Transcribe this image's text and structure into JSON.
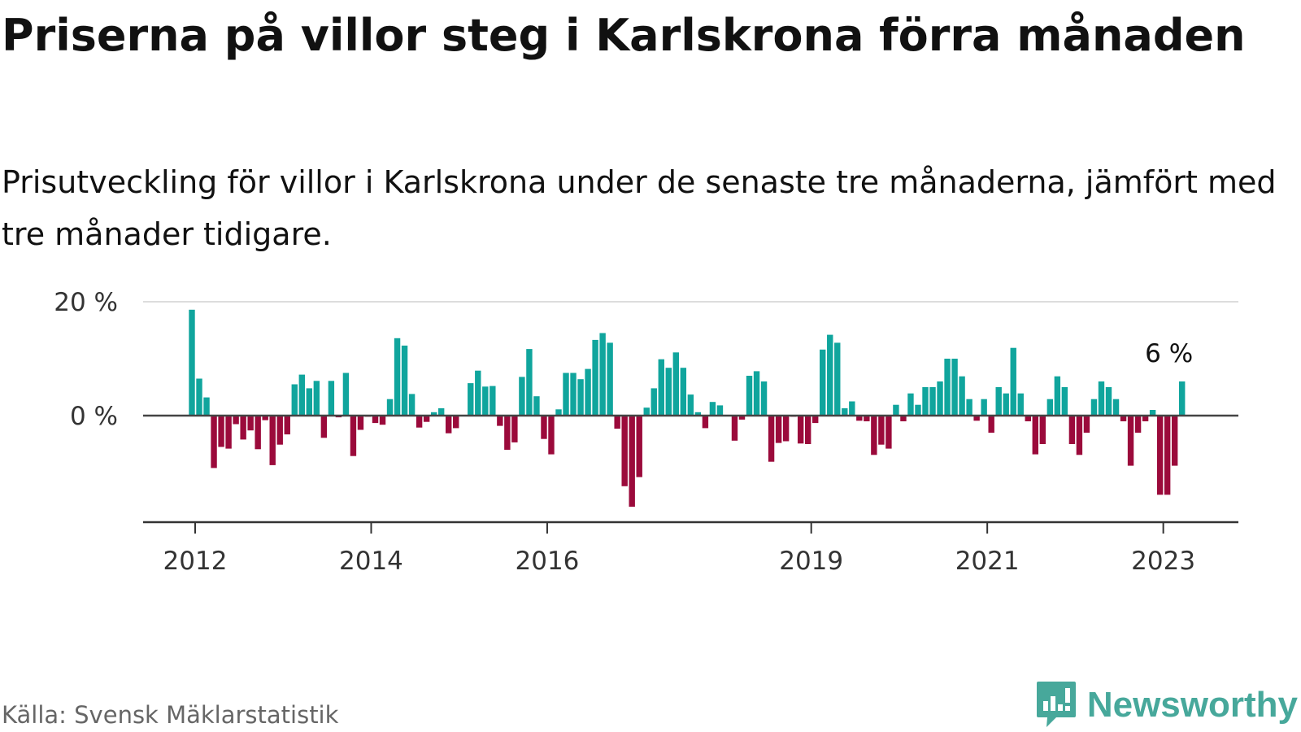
{
  "title": "Priserna på villor steg i Karlskrona förra månaden",
  "subtitle": "Prisutveckling för villor i Karlskrona under de senaste tre månaderna, jämfört med tre månader tidigare.",
  "source": "Källa: Svensk Mäklarstatistik",
  "brand": "Newsworthy",
  "colors": {
    "positive": "#10a59d",
    "negative": "#9b0a3b",
    "logo": "#47a89b",
    "text": "#111111",
    "grid": "#dddddd"
  },
  "chart_data": {
    "type": "bar",
    "ylim": [
      -19,
      20
    ],
    "yticks": [
      0,
      20
    ],
    "ytick_labels": [
      "0 %",
      "20 %"
    ],
    "grid": true,
    "start": "2012-01",
    "xtick_labels": [
      {
        "index": 0,
        "label": "2012"
      },
      {
        "index": 24,
        "label": "2014"
      },
      {
        "index": 48,
        "label": "2016"
      },
      {
        "index": 84,
        "label": "2019"
      },
      {
        "index": 108,
        "label": "2021"
      },
      {
        "index": 132,
        "label": "2023"
      }
    ],
    "last_label": "6 %",
    "values": [
      18.6,
      6.5,
      3.2,
      -9.2,
      -5.5,
      -5.8,
      -1.5,
      -4.2,
      -2.6,
      -5.9,
      -0.8,
      -8.7,
      -5.1,
      -3.3,
      5.5,
      7.2,
      4.8,
      6.1,
      -3.9,
      6.1,
      -0.3,
      7.5,
      -7.1,
      -2.5,
      -0.2,
      -1.3,
      -1.6,
      2.9,
      13.6,
      12.3,
      3.8,
      -2.1,
      -1.1,
      0.6,
      1.3,
      -3.1,
      -2.2,
      -0.1,
      5.7,
      7.9,
      5.1,
      5.2,
      -1.8,
      -6.0,
      -4.7,
      6.8,
      11.7,
      3.4,
      -4.1,
      -6.8,
      1.1,
      7.5,
      7.5,
      6.4,
      8.2,
      13.3,
      14.5,
      12.8,
      -2.3,
      -12.4,
      -16.0,
      -10.8,
      1.4,
      4.8,
      9.9,
      8.4,
      11.1,
      8.4,
      3.7,
      0.6,
      -2.2,
      2.4,
      1.8,
      -0.1,
      -4.4,
      -0.7,
      7.0,
      7.8,
      6.0,
      -8.1,
      -4.8,
      -4.5,
      -0.2,
      -4.9,
      -5.0,
      -1.3,
      11.6,
      14.2,
      12.8,
      1.3,
      2.5,
      -0.9,
      -1.0,
      -6.9,
      -5.1,
      -5.8,
      1.9,
      -1.0,
      3.9,
      1.9,
      5.0,
      5.0,
      6.0,
      10.0,
      10.0,
      6.9,
      2.9,
      -0.9,
      2.9,
      -3.0,
      5.0,
      3.9,
      11.9,
      3.9,
      -1.0,
      -6.8,
      -5.0,
      2.9,
      6.9,
      5.0,
      -5.0,
      -6.9,
      -3.0,
      2.9,
      6.0,
      5.0,
      2.9,
      -1.0,
      -8.8,
      -3.0,
      -1.0,
      1.0,
      -13.9,
      -13.9,
      -8.8,
      6.0
    ]
  }
}
